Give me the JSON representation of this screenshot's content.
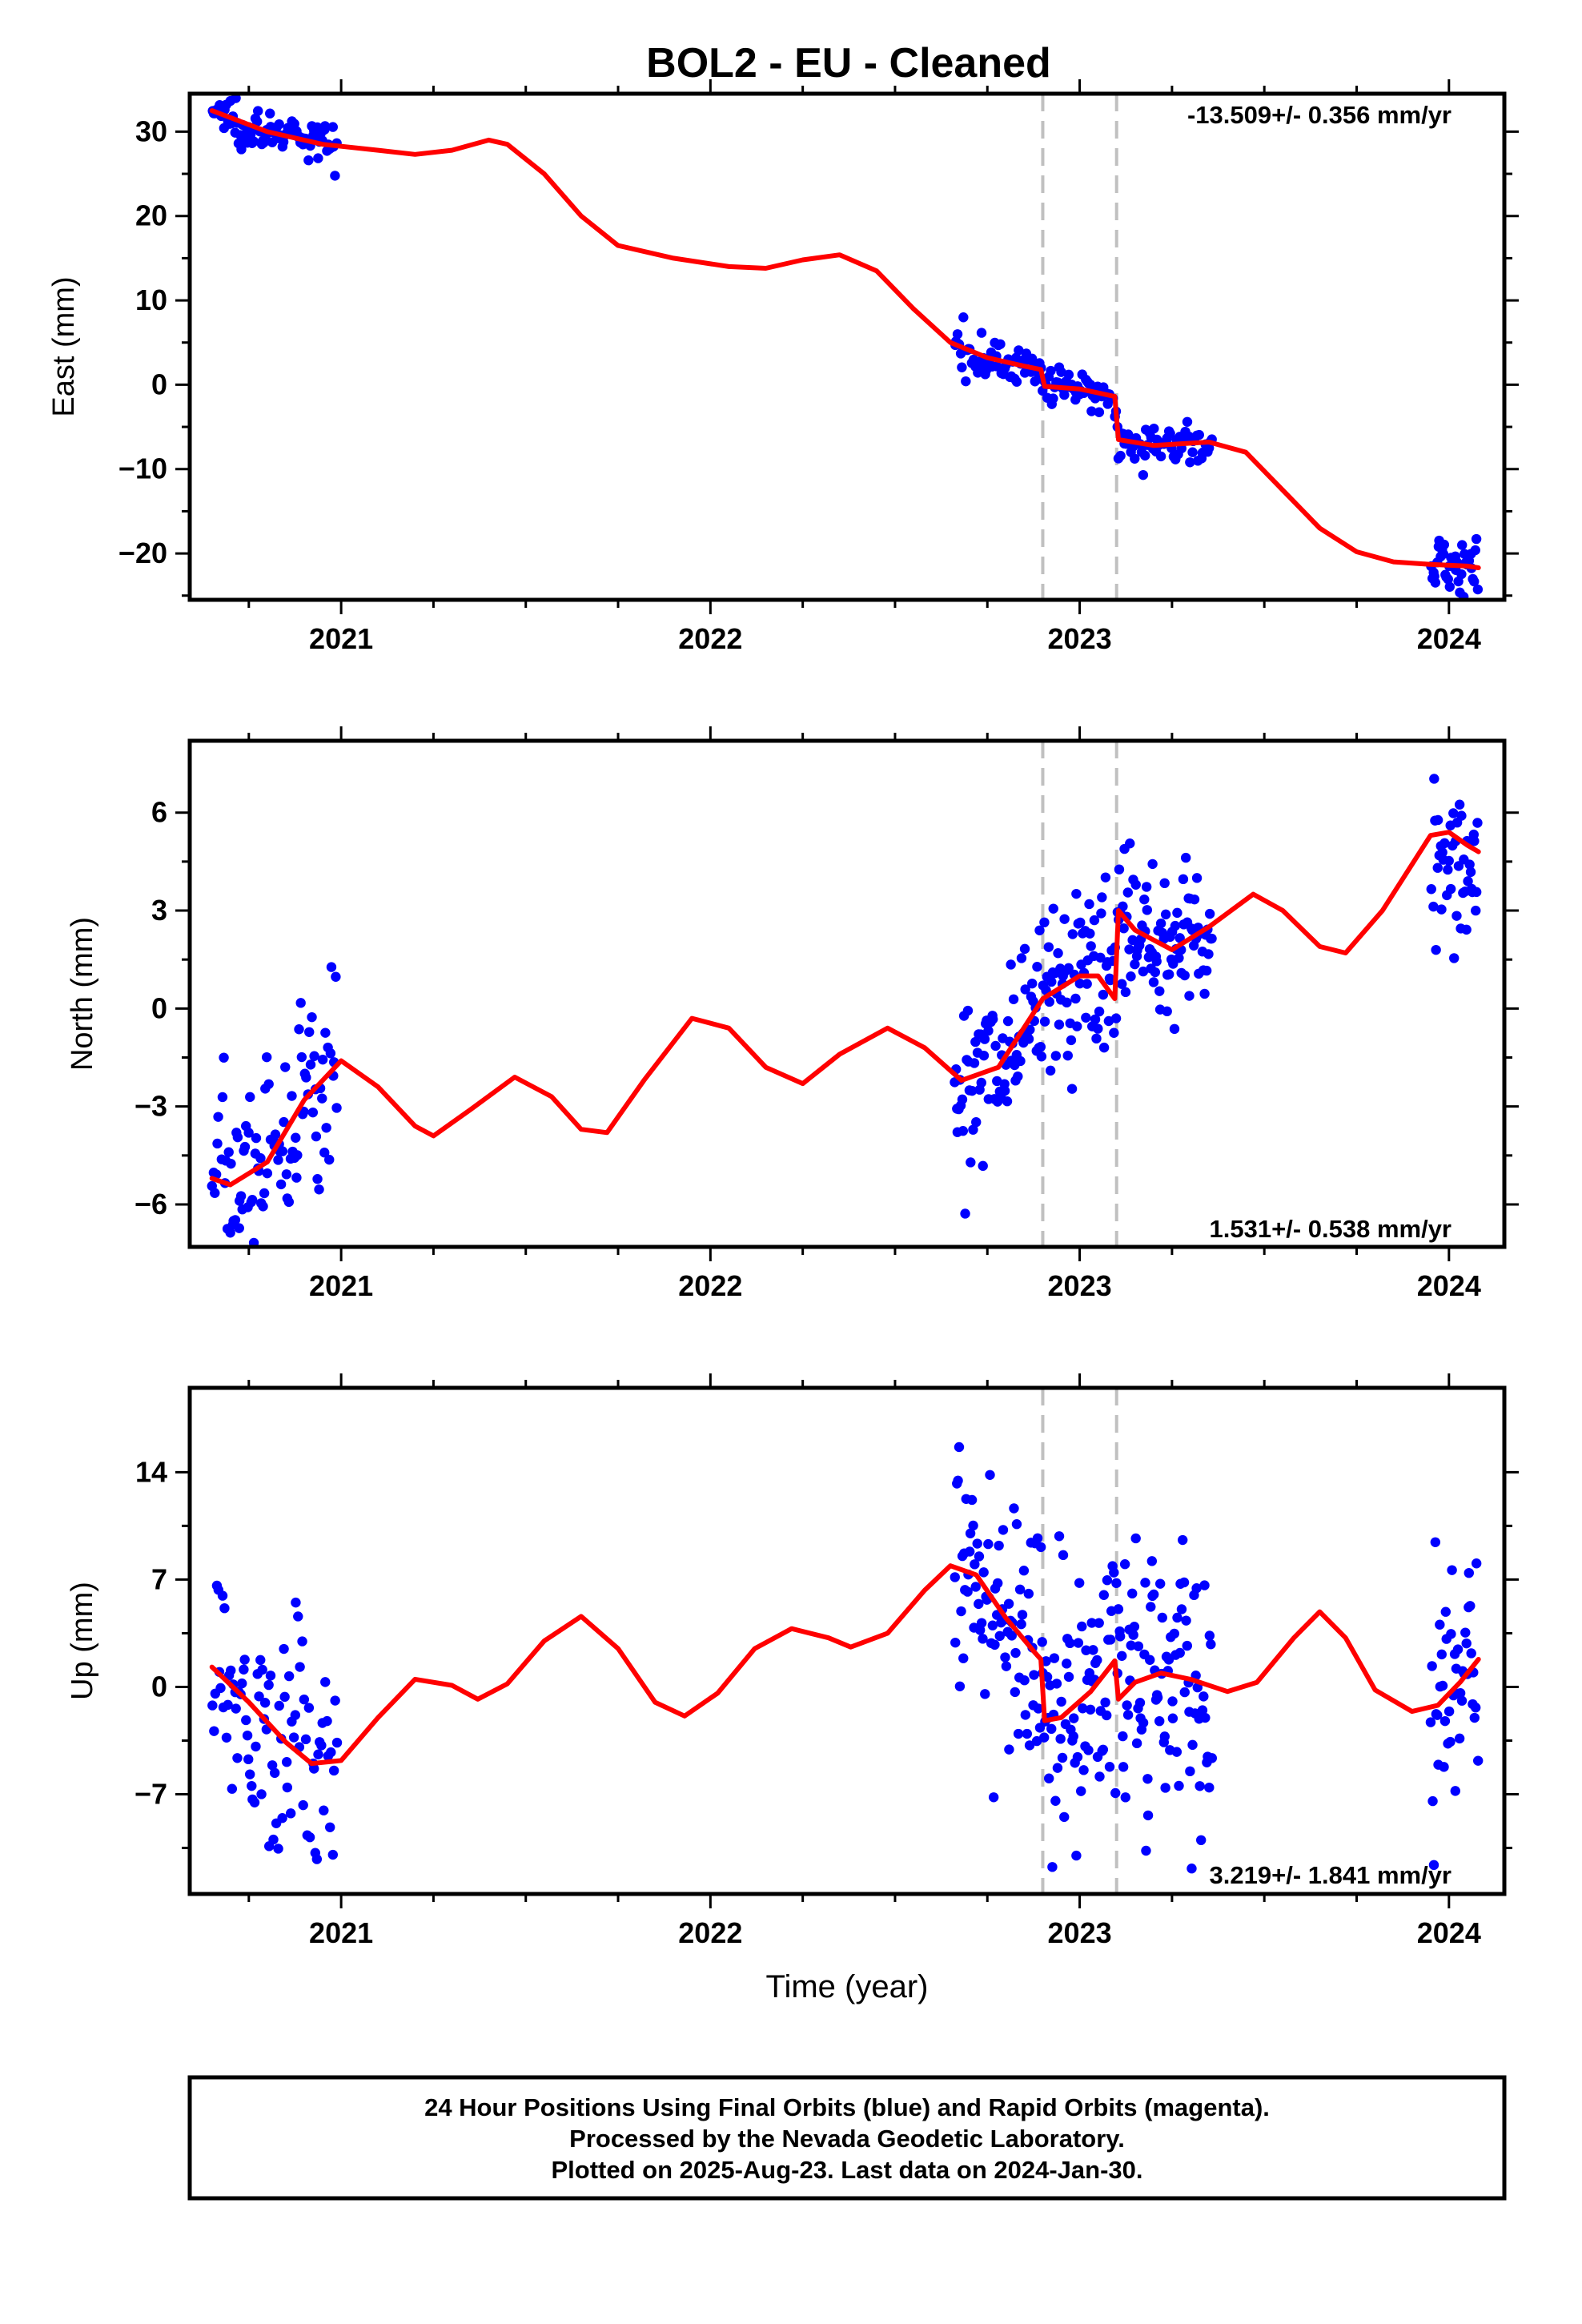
{
  "title": "BOL2  - EU - Cleaned",
  "colors": {
    "data_points": "#0000ff",
    "model_line": "#ff0000",
    "offset_lines": "#c0c0c0",
    "frame": "#000000"
  },
  "chart_data": [
    {
      "type": "scatter",
      "panel": "east",
      "ylabel": "East (mm)",
      "xlabel": "",
      "rate_label": "-13.509+/- 0.356 mm/yr",
      "rate_position": "top-right",
      "xlim": [
        2020.59,
        2024.15
      ],
      "ylim": [
        -25.5,
        34.5
      ],
      "xticks": [
        2021,
        2022,
        2023,
        2024
      ],
      "xtick_labels": [
        "2021",
        "2022",
        "2023",
        "2024"
      ],
      "yticks": [
        30,
        20,
        10,
        0,
        -10,
        -20
      ],
      "ytick_labels": [
        "30",
        "20",
        "10",
        "0",
        "−10",
        "−20"
      ],
      "offset_epochs": [
        2022.9,
        2023.1
      ],
      "model_keypoints": [
        [
          2020.65,
          32.5
        ],
        [
          2020.8,
          30.0
        ],
        [
          2020.95,
          28.5
        ],
        [
          2021.1,
          27.8
        ],
        [
          2021.2,
          27.3
        ],
        [
          2021.3,
          27.8
        ],
        [
          2021.4,
          29.0
        ],
        [
          2021.45,
          28.5
        ],
        [
          2021.55,
          25.0
        ],
        [
          2021.65,
          20.0
        ],
        [
          2021.75,
          16.5
        ],
        [
          2021.9,
          15.0
        ],
        [
          2022.05,
          14.0
        ],
        [
          2022.15,
          13.8
        ],
        [
          2022.25,
          14.8
        ],
        [
          2022.35,
          15.4
        ],
        [
          2022.45,
          13.5
        ],
        [
          2022.55,
          9.0
        ],
        [
          2022.65,
          5.0
        ],
        [
          2022.75,
          3.2
        ],
        [
          2022.85,
          2.2
        ],
        [
          2022.895,
          1.8
        ],
        [
          2022.905,
          -0.2
        ],
        [
          2023.0,
          -0.5
        ],
        [
          2023.095,
          -1.4
        ],
        [
          2023.105,
          -6.5
        ],
        [
          2023.2,
          -7.2
        ],
        [
          2023.35,
          -6.8
        ],
        [
          2023.45,
          -8.0
        ],
        [
          2023.55,
          -12.5
        ],
        [
          2023.65,
          -17.0
        ],
        [
          2023.75,
          -19.8
        ],
        [
          2023.85,
          -21.0
        ],
        [
          2023.95,
          -21.3
        ],
        [
          2024.05,
          -21.5
        ],
        [
          2024.08,
          -21.7
        ]
      ],
      "scatter_segments": [
        {
          "x_start": 2020.65,
          "x_end": 2020.99,
          "count": 90,
          "spread": 1.3
        },
        {
          "x_start": 2022.66,
          "x_end": 2023.36,
          "count": 170,
          "spread": 1.1
        },
        {
          "x_start": 2023.95,
          "x_end": 2024.08,
          "count": 40,
          "spread": 1.6
        }
      ]
    },
    {
      "type": "scatter",
      "panel": "north",
      "ylabel": "North (mm)",
      "xlabel": "",
      "rate_label": "1.531+/- 0.538 mm/yr",
      "rate_position": "bottom-right",
      "xlim": [
        2020.59,
        2024.15
      ],
      "ylim": [
        -7.3,
        8.2
      ],
      "xticks": [
        2021,
        2022,
        2023,
        2024
      ],
      "xtick_labels": [
        "2021",
        "2022",
        "2023",
        "2024"
      ],
      "yticks": [
        6,
        3,
        0,
        -3,
        -6
      ],
      "ytick_labels": [
        "6",
        "3",
        "0",
        "−3",
        "−6"
      ],
      "offset_epochs": [
        2022.9,
        2023.1
      ],
      "model_keypoints": [
        [
          2020.65,
          -5.2
        ],
        [
          2020.7,
          -5.4
        ],
        [
          2020.8,
          -4.7
        ],
        [
          2020.9,
          -2.8
        ],
        [
          2021.0,
          -1.6
        ],
        [
          2021.1,
          -2.4
        ],
        [
          2021.2,
          -3.6
        ],
        [
          2021.25,
          -3.9
        ],
        [
          2021.35,
          -3.1
        ],
        [
          2021.47,
          -2.1
        ],
        [
          2021.57,
          -2.7
        ],
        [
          2021.65,
          -3.7
        ],
        [
          2021.72,
          -3.8
        ],
        [
          2021.82,
          -2.2
        ],
        [
          2021.95,
          -0.3
        ],
        [
          2022.05,
          -0.6
        ],
        [
          2022.15,
          -1.8
        ],
        [
          2022.25,
          -2.3
        ],
        [
          2022.35,
          -1.4
        ],
        [
          2022.48,
          -0.6
        ],
        [
          2022.58,
          -1.2
        ],
        [
          2022.68,
          -2.2
        ],
        [
          2022.78,
          -1.8
        ],
        [
          2022.9,
          0.3
        ],
        [
          2023.0,
          1.0
        ],
        [
          2023.05,
          1.0
        ],
        [
          2023.095,
          0.3
        ],
        [
          2023.105,
          3.0
        ],
        [
          2023.15,
          2.4
        ],
        [
          2023.25,
          1.8
        ],
        [
          2023.35,
          2.5
        ],
        [
          2023.47,
          3.5
        ],
        [
          2023.55,
          3.0
        ],
        [
          2023.65,
          1.9
        ],
        [
          2023.72,
          1.7
        ],
        [
          2023.82,
          3.0
        ],
        [
          2023.95,
          5.3
        ],
        [
          2024.0,
          5.4
        ],
        [
          2024.05,
          5.0
        ],
        [
          2024.08,
          4.8
        ]
      ],
      "scatter_segments": [
        {
          "x_start": 2020.65,
          "x_end": 2020.99,
          "count": 100,
          "spread": 1.5
        },
        {
          "x_start": 2022.66,
          "x_end": 2023.36,
          "count": 240,
          "spread": 1.5
        },
        {
          "x_start": 2023.95,
          "x_end": 2024.08,
          "count": 45,
          "spread": 1.6
        }
      ]
    },
    {
      "type": "scatter",
      "panel": "up",
      "ylabel": "Up (mm)",
      "xlabel": "Time (year)",
      "rate_label": "3.219+/- 1.841 mm/yr",
      "rate_position": "bottom-right",
      "xlim": [
        2020.59,
        2024.15
      ],
      "ylim": [
        -13.5,
        19.5
      ],
      "xticks": [
        2021,
        2022,
        2023,
        2024
      ],
      "xtick_labels": [
        "2021",
        "2022",
        "2023",
        "2024"
      ],
      "yticks": [
        14,
        7,
        0,
        -7
      ],
      "ytick_labels": [
        "14",
        "7",
        "0",
        "−7"
      ],
      "offset_epochs": [
        2022.9,
        2023.1
      ],
      "model_keypoints": [
        [
          2020.65,
          1.3
        ],
        [
          2020.75,
          -1.0
        ],
        [
          2020.85,
          -3.6
        ],
        [
          2020.92,
          -5.0
        ],
        [
          2021.0,
          -4.8
        ],
        [
          2021.1,
          -2.0
        ],
        [
          2021.2,
          0.5
        ],
        [
          2021.3,
          0.1
        ],
        [
          2021.37,
          -0.8
        ],
        [
          2021.45,
          0.2
        ],
        [
          2021.55,
          3.0
        ],
        [
          2021.65,
          4.6
        ],
        [
          2021.75,
          2.5
        ],
        [
          2021.85,
          -1.0
        ],
        [
          2021.93,
          -1.9
        ],
        [
          2022.02,
          -0.4
        ],
        [
          2022.12,
          2.5
        ],
        [
          2022.22,
          3.8
        ],
        [
          2022.32,
          3.2
        ],
        [
          2022.38,
          2.6
        ],
        [
          2022.48,
          3.5
        ],
        [
          2022.58,
          6.3
        ],
        [
          2022.65,
          7.9
        ],
        [
          2022.72,
          7.3
        ],
        [
          2022.8,
          4.5
        ],
        [
          2022.88,
          2.2
        ],
        [
          2022.895,
          1.8
        ],
        [
          2022.905,
          -2.2
        ],
        [
          2022.95,
          -2.0
        ],
        [
          2023.03,
          -0.3
        ],
        [
          2023.095,
          1.7
        ],
        [
          2023.105,
          -0.8
        ],
        [
          2023.15,
          0.3
        ],
        [
          2023.22,
          0.9
        ],
        [
          2023.3,
          0.5
        ],
        [
          2023.4,
          -0.3
        ],
        [
          2023.48,
          0.3
        ],
        [
          2023.58,
          3.2
        ],
        [
          2023.65,
          4.9
        ],
        [
          2023.72,
          3.2
        ],
        [
          2023.8,
          -0.2
        ],
        [
          2023.9,
          -1.6
        ],
        [
          2023.97,
          -1.2
        ],
        [
          2024.03,
          0.3
        ],
        [
          2024.08,
          1.8
        ]
      ],
      "scatter_segments": [
        {
          "x_start": 2020.65,
          "x_end": 2020.99,
          "count": 90,
          "spread": 4.0
        },
        {
          "x_start": 2022.66,
          "x_end": 2023.36,
          "count": 240,
          "spread": 4.5
        },
        {
          "x_start": 2023.95,
          "x_end": 2024.08,
          "count": 45,
          "spread": 4.5
        }
      ]
    }
  ],
  "footer": {
    "line1": "24 Hour Positions Using Final Orbits (blue) and Rapid Orbits (magenta).",
    "line2": "Processed by the Nevada Geodetic Laboratory.",
    "line3": "Plotted on 2025-Aug-23. Last data on 2024-Jan-30."
  }
}
